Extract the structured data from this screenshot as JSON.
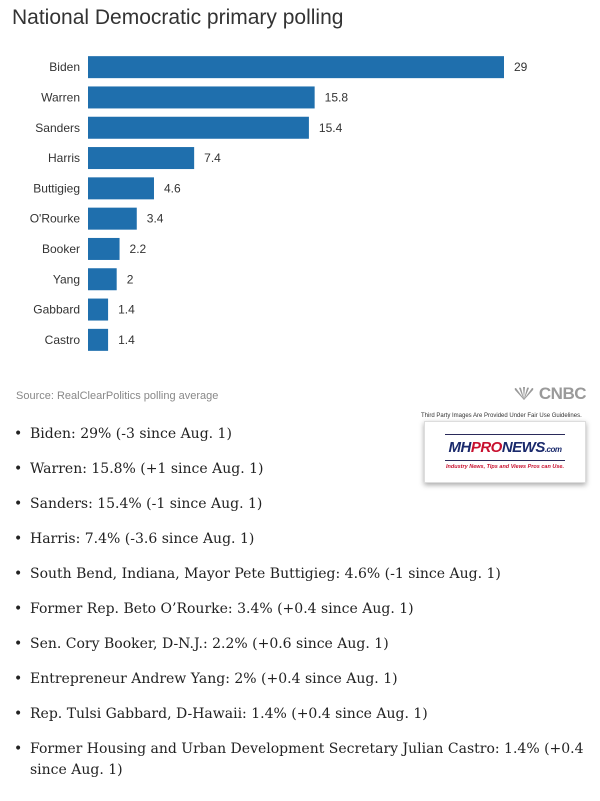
{
  "chart_data": {
    "type": "bar",
    "orientation": "horizontal",
    "title": "National Democratic primary polling",
    "categories": [
      "Biden",
      "Warren",
      "Sanders",
      "Harris",
      "Buttigieg",
      "O'Rourke",
      "Booker",
      "Yang",
      "Gabbard",
      "Castro"
    ],
    "values": [
      29,
      15.8,
      15.4,
      7.4,
      4.6,
      3.4,
      2.2,
      2,
      1.4,
      1.4
    ],
    "value_labels": [
      "29",
      "15.8",
      "15.4",
      "7.4",
      "4.6",
      "3.4",
      "2.2",
      "2",
      "1.4",
      "1.4"
    ],
    "xlim": [
      0,
      29
    ],
    "bar_color": "#1f6fad",
    "grid": false,
    "legend": "none"
  },
  "source": "Source: RealClearPolitics polling average",
  "brand": "CNBC",
  "fair_use_note": "Third Party Images Are Provided Under Fair Use Guidelines.",
  "logo": {
    "mh": "MH",
    "pro": "PRO",
    "news": "NEWS",
    "com": ".com",
    "tagline": "Industry News, Tips and Views Pros can Use."
  },
  "notes": [
    "Biden: 29% (-3 since Aug. 1)",
    "Warren: 15.8% (+1 since Aug. 1)",
    "Sanders: 15.4% (-1 since Aug. 1)",
    "Harris: 7.4% (-3.6 since Aug. 1)",
    "South Bend, Indiana, Mayor Pete Buttigieg: 4.6% (-1 since Aug. 1)",
    "Former Rep. Beto O’Rourke: 3.4% (+0.4 since Aug. 1)",
    "Sen. Cory Booker, D-N.J.: 2.2% (+0.6 since Aug. 1)",
    "Entrepreneur Andrew Yang: 2% (+0.4 since Aug. 1)",
    "Rep. Tulsi Gabbard, D-Hawaii: 1.4% (+0.4 since Aug. 1)",
    "Former Housing and Urban Development Secretary Julian Castro: 1.4% (+0.4 since Aug. 1)"
  ]
}
